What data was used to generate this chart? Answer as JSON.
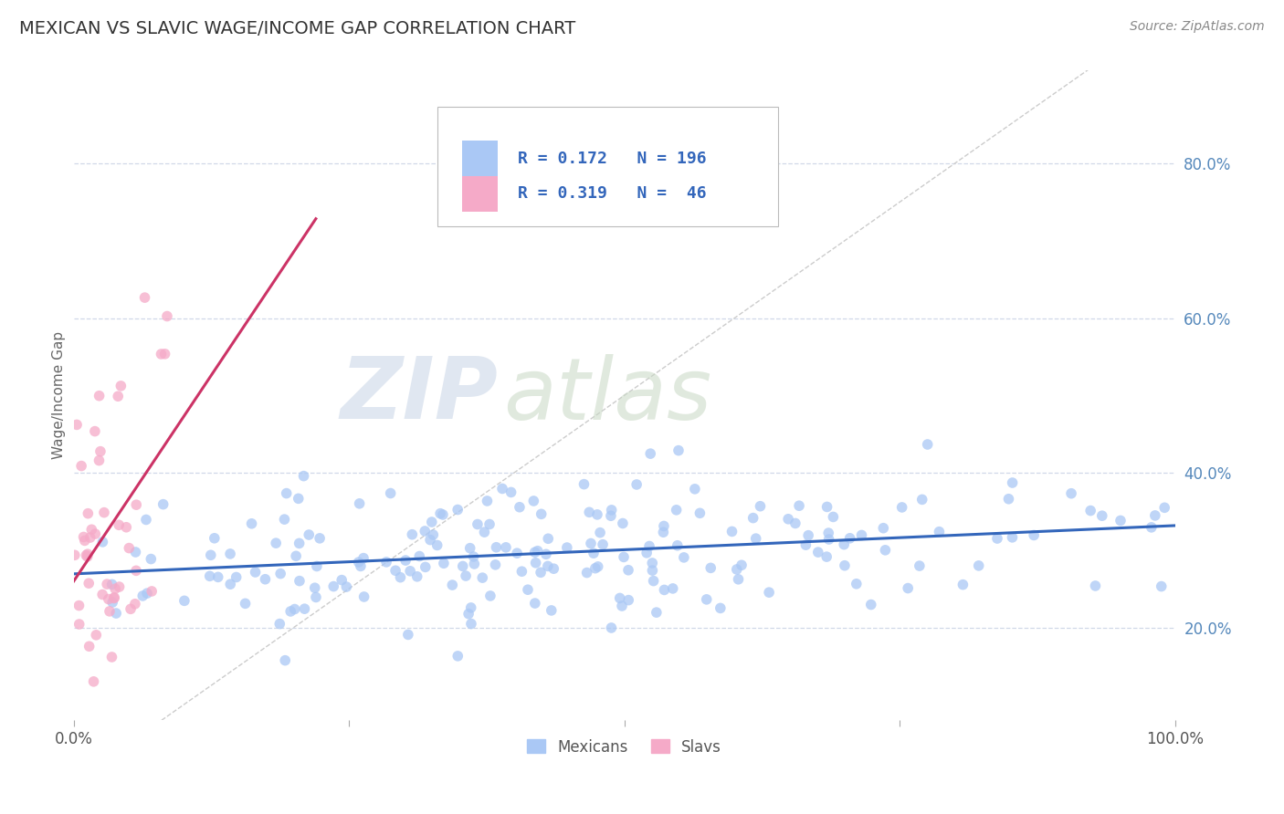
{
  "title": "MEXICAN VS SLAVIC WAGE/INCOME GAP CORRELATION CHART",
  "source_text": "Source: ZipAtlas.com",
  "ylabel": "Wage/Income Gap",
  "ytick_labels": [
    "20.0%",
    "40.0%",
    "60.0%",
    "80.0%"
  ],
  "ytick_values": [
    0.2,
    0.4,
    0.6,
    0.8
  ],
  "xrange": [
    0.0,
    1.0
  ],
  "yrange": [
    0.08,
    0.92
  ],
  "legend_r_mexican": "0.172",
  "legend_n_mexican": "196",
  "legend_r_slav": "0.319",
  "legend_n_slav": "46",
  "mexican_color": "#aac8f5",
  "slav_color": "#f5aac8",
  "mexican_line_color": "#3366bb",
  "slav_line_color": "#cc3366",
  "diagonal_color": "#cccccc",
  "background_color": "#ffffff",
  "title_color": "#333333",
  "title_fontsize": 14,
  "source_fontsize": 10,
  "watermark_zip": "ZIP",
  "watermark_atlas": "atlas",
  "watermark_color_zip": "#c8d8e8",
  "watermark_color_atlas": "#c8d8cc",
  "seed": 42
}
